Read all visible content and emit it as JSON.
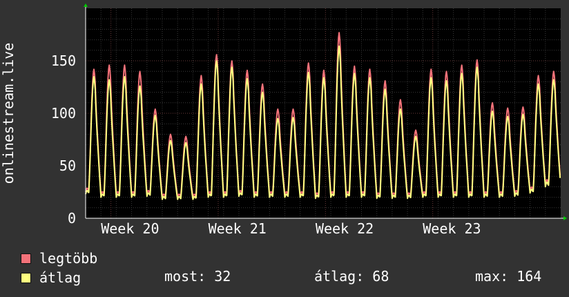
{
  "chart_data": {
    "type": "line",
    "ylabel": "onlinestream.live",
    "xlabel": "",
    "ylim": [
      0,
      200
    ],
    "yticks": [
      0,
      50,
      100,
      150
    ],
    "x_ticks": [
      "Week 20",
      "Week 21",
      "Week 22",
      "Week 23"
    ],
    "grid": true,
    "legend_position": "bottom-left",
    "series": [
      {
        "name": "legtöbb",
        "color": "#f4727a",
        "daily_peaks": [
          142,
          146,
          146,
          140,
          104,
          80,
          78,
          136,
          156,
          150,
          141,
          128,
          104,
          104,
          148,
          141,
          177,
          145,
          142,
          131,
          113,
          84,
          142,
          140,
          146,
          151,
          110,
          105,
          106,
          136,
          140
        ],
        "daily_lows": [
          25,
          22,
          22,
          22,
          23,
          20,
          20,
          20,
          22,
          22,
          23,
          22,
          22,
          22,
          22,
          21,
          22,
          22,
          22,
          21,
          21,
          21,
          22,
          22,
          22,
          22,
          22,
          22,
          23,
          26,
          32
        ]
      },
      {
        "name": "átlag",
        "color": "#ffff80",
        "daily_peaks": [
          135,
          132,
          135,
          126,
          98,
          74,
          72,
          128,
          150,
          144,
          133,
          120,
          95,
          96,
          139,
          134,
          164,
          138,
          134,
          123,
          104,
          78,
          134,
          131,
          138,
          144,
          102,
          97,
          99,
          128,
          132
        ],
        "daily_lows": [
          23,
          20,
          20,
          20,
          21,
          18,
          18,
          18,
          20,
          20,
          21,
          20,
          20,
          20,
          20,
          19,
          20,
          20,
          20,
          19,
          19,
          19,
          20,
          20,
          20,
          20,
          20,
          20,
          21,
          24,
          30
        ]
      }
    ]
  },
  "legend": {
    "max_label": "legtöbb",
    "avg_label": "átlag",
    "max_color": "#f4727a",
    "avg_color": "#ffff80",
    "stat_now": "most: 32",
    "stat_avg": "átlag: 68",
    "stat_max": "max: 164"
  }
}
